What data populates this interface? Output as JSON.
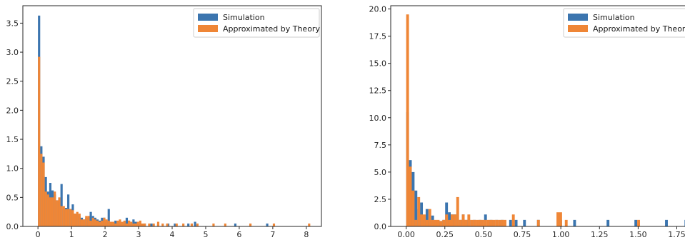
{
  "colors": {
    "simulation": "#3b75af",
    "theory": "#ef8636",
    "axis": "#262626",
    "legend_border": "#cccccc"
  },
  "chart_data": [
    {
      "type": "bar",
      "subtype": "overlaid-histogram",
      "title": "",
      "xlabel": "",
      "ylabel": "",
      "xlim": [
        -0.45,
        8.45
      ],
      "ylim": [
        0,
        3.8
      ],
      "xticks": [
        0,
        1,
        2,
        3,
        4,
        5,
        6,
        7,
        8
      ],
      "xtick_labels": [
        "0",
        "1",
        "2",
        "3",
        "4",
        "5",
        "6",
        "7",
        "8"
      ],
      "yticks": [
        0.0,
        0.5,
        1.0,
        1.5,
        2.0,
        2.5,
        3.0,
        3.5
      ],
      "ytick_labels": [
        "0.0",
        "0.5",
        "1.0",
        "1.5",
        "2.0",
        "2.5",
        "3.0",
        "3.5"
      ],
      "bin_width": 0.067,
      "legend": {
        "placement": "top-right",
        "entries": [
          "Simulation",
          "Approximated by Theory"
        ]
      },
      "series": [
        {
          "name": "Simulation",
          "bins": [
            [
              0.0,
              3.63
            ],
            [
              0.067,
              1.38
            ],
            [
              0.134,
              1.2
            ],
            [
              0.201,
              0.85
            ],
            [
              0.268,
              0.6
            ],
            [
              0.335,
              0.75
            ],
            [
              0.402,
              0.62
            ],
            [
              0.469,
              0.55
            ],
            [
              0.536,
              0.45
            ],
            [
              0.603,
              0.38
            ],
            [
              0.67,
              0.73
            ],
            [
              0.737,
              0.3
            ],
            [
              0.804,
              0.32
            ],
            [
              0.871,
              0.55
            ],
            [
              0.938,
              0.3
            ],
            [
              1.005,
              0.38
            ],
            [
              1.072,
              0.22
            ],
            [
              1.139,
              0.22
            ],
            [
              1.206,
              0.18
            ],
            [
              1.273,
              0.15
            ],
            [
              1.34,
              0.12
            ],
            [
              1.407,
              0.15
            ],
            [
              1.474,
              0.15
            ],
            [
              1.541,
              0.25
            ],
            [
              1.608,
              0.18
            ],
            [
              1.675,
              0.15
            ],
            [
              1.742,
              0.12
            ],
            [
              1.809,
              0.1
            ],
            [
              1.876,
              0.15
            ],
            [
              1.943,
              0.15
            ],
            [
              2.01,
              0.08
            ],
            [
              2.077,
              0.3
            ],
            [
              2.144,
              0.08
            ],
            [
              2.211,
              0.05
            ],
            [
              2.278,
              0.1
            ],
            [
              2.345,
              0.08
            ],
            [
              2.412,
              0.08
            ],
            [
              2.479,
              0.05
            ],
            [
              2.546,
              0.08
            ],
            [
              2.613,
              0.15
            ],
            [
              2.68,
              0.1
            ],
            [
              2.747,
              0.05
            ],
            [
              2.814,
              0.12
            ],
            [
              2.881,
              0.08
            ],
            [
              2.948,
              0.05
            ],
            [
              3.015,
              0.05
            ],
            [
              3.149,
              0.05
            ],
            [
              3.35,
              0.05
            ],
            [
              3.55,
              0.05
            ],
            [
              3.85,
              0.05
            ],
            [
              4.05,
              0.05
            ],
            [
              4.45,
              0.05
            ],
            [
              4.65,
              0.08
            ],
            [
              5.85,
              0.05
            ],
            [
              6.8,
              0.05
            ]
          ]
        },
        {
          "name": "Approximated by Theory",
          "bins": [
            [
              0.0,
              2.92
            ],
            [
              0.067,
              1.25
            ],
            [
              0.134,
              1.1
            ],
            [
              0.201,
              0.6
            ],
            [
              0.268,
              0.55
            ],
            [
              0.335,
              0.5
            ],
            [
              0.402,
              0.5
            ],
            [
              0.469,
              0.6
            ],
            [
              0.536,
              0.45
            ],
            [
              0.603,
              0.5
            ],
            [
              0.67,
              0.35
            ],
            [
              0.737,
              0.35
            ],
            [
              0.804,
              0.3
            ],
            [
              0.871,
              0.3
            ],
            [
              0.938,
              0.3
            ],
            [
              1.005,
              0.28
            ],
            [
              1.072,
              0.22
            ],
            [
              1.139,
              0.25
            ],
            [
              1.206,
              0.22
            ],
            [
              1.273,
              0.12
            ],
            [
              1.34,
              0.12
            ],
            [
              1.407,
              0.18
            ],
            [
              1.474,
              0.18
            ],
            [
              1.541,
              0.1
            ],
            [
              1.608,
              0.15
            ],
            [
              1.675,
              0.12
            ],
            [
              1.742,
              0.1
            ],
            [
              1.809,
              0.08
            ],
            [
              1.876,
              0.1
            ],
            [
              1.943,
              0.15
            ],
            [
              2.01,
              0.12
            ],
            [
              2.077,
              0.1
            ],
            [
              2.144,
              0.08
            ],
            [
              2.211,
              0.08
            ],
            [
              2.278,
              0.05
            ],
            [
              2.345,
              0.1
            ],
            [
              2.412,
              0.12
            ],
            [
              2.479,
              0.08
            ],
            [
              2.546,
              0.1
            ],
            [
              2.613,
              0.05
            ],
            [
              2.68,
              0.1
            ],
            [
              2.747,
              0.08
            ],
            [
              2.814,
              0.05
            ],
            [
              2.881,
              0.05
            ],
            [
              2.948,
              0.08
            ],
            [
              3.015,
              0.1
            ],
            [
              3.082,
              0.05
            ],
            [
              3.149,
              0.05
            ],
            [
              3.283,
              0.05
            ],
            [
              3.417,
              0.05
            ],
            [
              3.551,
              0.08
            ],
            [
              3.685,
              0.05
            ],
            [
              3.819,
              0.05
            ],
            [
              4.1,
              0.05
            ],
            [
              4.3,
              0.05
            ],
            [
              4.55,
              0.05
            ],
            [
              4.72,
              0.05
            ],
            [
              5.2,
              0.05
            ],
            [
              5.55,
              0.05
            ],
            [
              6.3,
              0.05
            ],
            [
              7.0,
              0.05
            ],
            [
              8.05,
              0.05
            ]
          ]
        }
      ]
    },
    {
      "type": "bar",
      "subtype": "overlaid-histogram",
      "title": "",
      "xlabel": "",
      "ylabel": "",
      "xlim": [
        -0.1,
        1.84
      ],
      "ylim": [
        0,
        20.3
      ],
      "xticks": [
        0.0,
        0.25,
        0.5,
        0.75,
        1.0,
        1.25,
        1.5,
        1.75
      ],
      "xtick_labels": [
        "0.00",
        "0.25",
        "0.50",
        "0.75",
        "1.00",
        "1.25",
        "1.50",
        "1.75"
      ],
      "yticks": [
        0.0,
        2.5,
        5.0,
        7.5,
        10.0,
        12.5,
        15.0,
        17.5,
        20.0
      ],
      "ytick_labels": [
        "0.0",
        "2.5",
        "5.0",
        "7.5",
        "10.0",
        "12.5",
        "15.0",
        "17.5",
        "20.0"
      ],
      "bin_width": 0.018,
      "legend": {
        "placement": "top-right",
        "entries": [
          "Simulation",
          "Approximated by Theory"
        ]
      },
      "series": [
        {
          "name": "Simulation",
          "bins": [
            [
              0.0,
              10.5
            ],
            [
              0.018,
              6.1
            ],
            [
              0.036,
              5.0
            ],
            [
              0.054,
              3.3
            ],
            [
              0.072,
              1.6
            ],
            [
              0.09,
              2.2
            ],
            [
              0.108,
              0.6
            ],
            [
              0.126,
              1.6
            ],
            [
              0.144,
              0.5
            ],
            [
              0.162,
              1.0
            ],
            [
              0.18,
              0.5
            ],
            [
              0.198,
              0.5
            ],
            [
              0.216,
              0.5
            ],
            [
              0.234,
              0.6
            ],
            [
              0.252,
              2.2
            ],
            [
              0.27,
              1.3
            ],
            [
              0.288,
              1.1
            ],
            [
              0.306,
              1.1
            ],
            [
              0.342,
              0.6
            ],
            [
              0.36,
              1.1
            ],
            [
              0.378,
              0.6
            ],
            [
              0.396,
              0.6
            ],
            [
              0.432,
              0.6
            ],
            [
              0.468,
              0.6
            ],
            [
              0.504,
              1.1
            ],
            [
              0.54,
              0.6
            ],
            [
              0.576,
              0.6
            ],
            [
              0.612,
              0.6
            ],
            [
              0.666,
              0.6
            ],
            [
              0.702,
              0.6
            ],
            [
              0.756,
              0.6
            ],
            [
              0.846,
              0.6
            ],
            [
              0.99,
              0.6
            ],
            [
              1.08,
              0.6
            ],
            [
              1.296,
              0.6
            ],
            [
              1.476,
              0.6
            ],
            [
              1.674,
              0.6
            ],
            [
              1.8,
              0.6
            ]
          ]
        },
        {
          "name": "Approximated by Theory",
          "bins": [
            [
              0.0,
              19.5
            ],
            [
              0.018,
              5.5
            ],
            [
              0.036,
              3.3
            ],
            [
              0.054,
              0.6
            ],
            [
              0.072,
              2.7
            ],
            [
              0.09,
              1.1
            ],
            [
              0.108,
              1.1
            ],
            [
              0.126,
              0.6
            ],
            [
              0.144,
              1.6
            ],
            [
              0.162,
              0.6
            ],
            [
              0.18,
              0.6
            ],
            [
              0.198,
              0.6
            ],
            [
              0.216,
              0.5
            ],
            [
              0.234,
              0.6
            ],
            [
              0.252,
              1.1
            ],
            [
              0.27,
              0.6
            ],
            [
              0.288,
              1.1
            ],
            [
              0.306,
              1.1
            ],
            [
              0.324,
              2.7
            ],
            [
              0.342,
              0.6
            ],
            [
              0.36,
              1.1
            ],
            [
              0.378,
              0.6
            ],
            [
              0.396,
              1.1
            ],
            [
              0.414,
              0.6
            ],
            [
              0.432,
              0.6
            ],
            [
              0.45,
              0.6
            ],
            [
              0.468,
              0.6
            ],
            [
              0.486,
              0.6
            ],
            [
              0.504,
              0.6
            ],
            [
              0.522,
              0.6
            ],
            [
              0.54,
              0.6
            ],
            [
              0.558,
              0.6
            ],
            [
              0.576,
              0.6
            ],
            [
              0.594,
              0.6
            ],
            [
              0.612,
              0.6
            ],
            [
              0.63,
              0.6
            ],
            [
              0.684,
              1.1
            ],
            [
              0.846,
              0.6
            ],
            [
              0.972,
              1.3
            ],
            [
              0.99,
              1.3
            ],
            [
              1.026,
              0.6
            ],
            [
              1.494,
              0.6
            ]
          ]
        }
      ]
    }
  ]
}
